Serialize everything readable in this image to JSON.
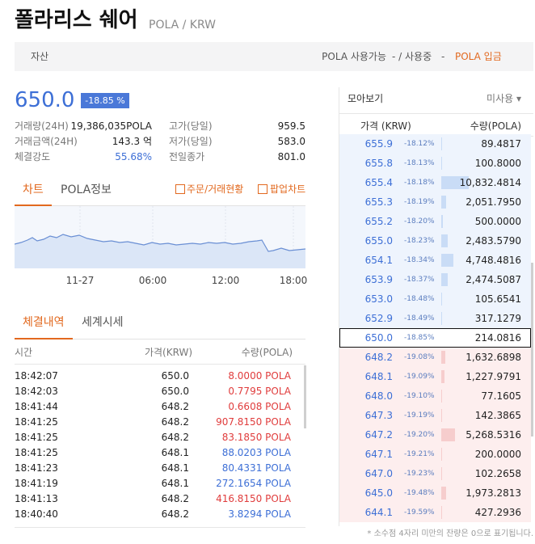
{
  "header": {
    "title": "폴라리스 쉐어",
    "pair": "POLA / KRW"
  },
  "asset_bar": {
    "label": "자산",
    "available": "POLA 사용가능",
    "in_use": "- / 사용중",
    "dash": "-",
    "deposit": "POLA 입금"
  },
  "summary": {
    "price": "650.0",
    "change": "-18.85 %",
    "stats": [
      {
        "label": "거래량(24H)",
        "value": "19,386,035POLA",
        "label2": "고가(당일)",
        "value2": "959.5"
      },
      {
        "label": "거래금액(24H)",
        "value": "143.3 억",
        "label2": "저가(당일)",
        "value2": "583.0"
      },
      {
        "label": "체결강도",
        "value": "55.68%",
        "label2": "전일종가",
        "value2": "801.0"
      }
    ]
  },
  "chart_tabs": {
    "active": "차트",
    "other": "POLA정보",
    "orders": "주문/거래현황",
    "popup": "팝업차트"
  },
  "chart_axis": [
    "11-27",
    "06:00",
    "12:00",
    "18:00"
  ],
  "trade_tabs": {
    "active": "체결내역",
    "other": "세계시세"
  },
  "trades": {
    "columns": [
      "시간",
      "가격(KRW)",
      "수량(POLA)"
    ],
    "rows": [
      {
        "time": "18:42:07",
        "price": "650.0",
        "qty": "8.0000 POLA",
        "color": "#e03c3c"
      },
      {
        "time": "18:42:03",
        "price": "650.0",
        "qty": "0.7795 POLA",
        "color": "#e03c3c"
      },
      {
        "time": "18:41:44",
        "price": "648.2",
        "qty": "0.6608 POLA",
        "color": "#e03c3c"
      },
      {
        "time": "18:41:25",
        "price": "648.2",
        "qty": "907.8150 POLA",
        "color": "#e03c3c"
      },
      {
        "time": "18:41:25",
        "price": "648.2",
        "qty": "83.1850 POLA",
        "color": "#e03c3c"
      },
      {
        "time": "18:41:25",
        "price": "648.1",
        "qty": "88.0203 POLA",
        "color": "#3d6fd6"
      },
      {
        "time": "18:41:23",
        "price": "648.1",
        "qty": "80.4331 POLA",
        "color": "#3d6fd6"
      },
      {
        "time": "18:41:19",
        "price": "648.1",
        "qty": "272.1654 POLA",
        "color": "#3d6fd6"
      },
      {
        "time": "18:41:13",
        "price": "648.2",
        "qty": "416.8150 POLA",
        "color": "#e03c3c"
      },
      {
        "time": "18:40:40",
        "price": "648.2",
        "qty": "3.8294 POLA",
        "color": "#3d6fd6"
      }
    ]
  },
  "orderbook": {
    "title": "모아보기",
    "mode": "미사용 ▾",
    "columns": [
      "가격 (KRW)",
      "수량(POLA)"
    ],
    "asks": [
      {
        "price": "655.9",
        "change": "-18.12%",
        "qty": "89.4817"
      },
      {
        "price": "655.8",
        "change": "-18.13%",
        "qty": "100.8000"
      },
      {
        "price": "655.4",
        "change": "-18.18%",
        "qty": "10,832.4814"
      },
      {
        "price": "655.3",
        "change": "-18.19%",
        "qty": "2,051.7950"
      },
      {
        "price": "655.2",
        "change": "-18.20%",
        "qty": "500.0000"
      },
      {
        "price": "655.0",
        "change": "-18.23%",
        "qty": "2,483.5790"
      },
      {
        "price": "654.1",
        "change": "-18.34%",
        "qty": "4,748.4816"
      },
      {
        "price": "653.9",
        "change": "-18.37%",
        "qty": "2,474.5087"
      },
      {
        "price": "653.0",
        "change": "-18.48%",
        "qty": "105.6541"
      },
      {
        "price": "652.9",
        "change": "-18.49%",
        "qty": "317.1279"
      }
    ],
    "current": {
      "price": "650.0",
      "change": "-18.85%",
      "qty": "214.0816"
    },
    "bids": [
      {
        "price": "648.2",
        "change": "-19.08%",
        "qty": "1,632.6898"
      },
      {
        "price": "648.1",
        "change": "-19.09%",
        "qty": "1,227.9791"
      },
      {
        "price": "648.0",
        "change": "-19.10%",
        "qty": "77.1605"
      },
      {
        "price": "647.3",
        "change": "-19.19%",
        "qty": "142.3865"
      },
      {
        "price": "647.2",
        "change": "-19.20%",
        "qty": "5,268.5316"
      },
      {
        "price": "647.1",
        "change": "-19.21%",
        "qty": "200.0000"
      },
      {
        "price": "647.0",
        "change": "-19.23%",
        "qty": "102.2658"
      },
      {
        "price": "645.0",
        "change": "-19.48%",
        "qty": "1,973.2813"
      },
      {
        "price": "644.1",
        "change": "-19.59%",
        "qty": "427.2936"
      }
    ]
  },
  "footnote": "* 소수점 4자리 미만의 잔량은 0으로 표기됩니다."
}
